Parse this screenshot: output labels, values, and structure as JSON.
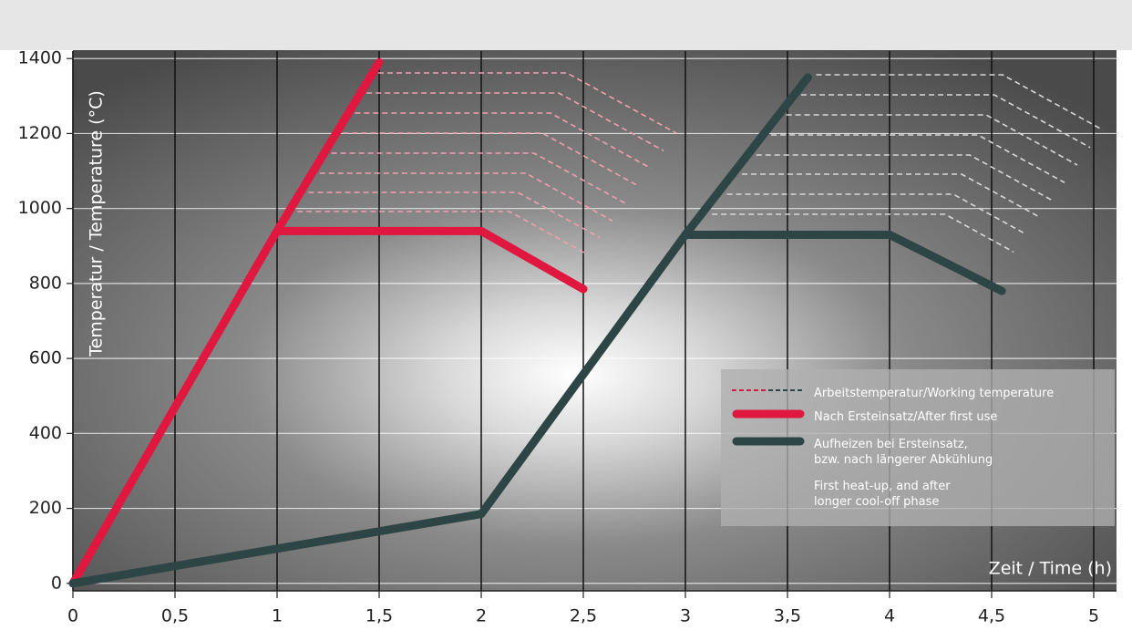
{
  "chart_data": {
    "type": "line",
    "x_label": "Zeit / Time (h)",
    "y_label": "Temperatur / Temperature (°C)",
    "working_temperature_label": "Arbeitstemperatur/Working temperature",
    "xlim": [
      0,
      5.1
    ],
    "ylim": [
      -20,
      1420
    ],
    "xticks": [
      0,
      {
        "value": 0.5,
        "label": "0,5"
      },
      1,
      {
        "value": 1.5,
        "label": "1,5"
      },
      2,
      {
        "value": 2.5,
        "label": "2,5"
      },
      3,
      {
        "value": 3.5,
        "label": "3,5"
      },
      4,
      {
        "value": 4.5,
        "label": "4,5"
      },
      5
    ],
    "yticks": [
      0,
      200,
      400,
      600,
      800,
      1000,
      1200,
      1400
    ],
    "grid": true,
    "series": [
      {
        "name": "Nach Ersteinsatz/After first use",
        "color": "#e0173f",
        "x": [
          0,
          1,
          1.5,
          null,
          1,
          2,
          2.5
        ],
        "values": [
          0,
          940,
          1390,
          null,
          940,
          940,
          785
        ]
      },
      {
        "name": "Aufheizen bei Ersteinsatz, bzw. nach längerer Abkühlung",
        "name_en": "First heat-up, and after longer cool-off phase",
        "color": "#2e4545",
        "x": [
          0,
          2,
          3,
          3.6,
          null,
          3,
          4,
          4.55
        ],
        "values": [
          0,
          185,
          930,
          1350,
          null,
          930,
          930,
          780
        ]
      }
    ]
  }
}
